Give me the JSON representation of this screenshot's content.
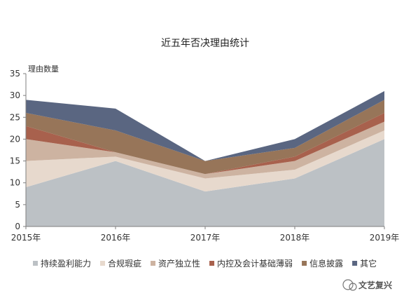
{
  "chart_data": {
    "type": "area",
    "stacked": true,
    "title": "近五年否决理由统计",
    "ylabel": "理由数量",
    "xlabel": "",
    "categories": [
      "2015年",
      "2016年",
      "2017年",
      "2018年",
      "2019年"
    ],
    "ylim": [
      0,
      35
    ],
    "yticks": [
      0,
      5,
      10,
      15,
      20,
      25,
      30,
      35
    ],
    "grid": false,
    "legend_position": "bottom",
    "series": [
      {
        "name": "持续盈利能力",
        "color": "#bcc1c5",
        "values": [
          9,
          15,
          8,
          11,
          20
        ]
      },
      {
        "name": "合规瑕疵",
        "color": "#e7d9cd",
        "values": [
          6,
          1,
          3,
          2,
          2
        ]
      },
      {
        "name": "资产独立性",
        "color": "#cdb3a1",
        "values": [
          5,
          1,
          1,
          2,
          2
        ]
      },
      {
        "name": "内控及会计基础薄弱",
        "color": "#a8614d",
        "values": [
          3,
          0,
          0,
          1,
          2
        ]
      },
      {
        "name": "信息披露",
        "color": "#977559",
        "values": [
          3,
          5,
          3,
          2,
          3
        ]
      },
      {
        "name": "其它",
        "color": "#5a6681",
        "values": [
          3,
          5,
          0,
          2,
          2
        ]
      }
    ]
  },
  "watermark": {
    "text": "文艺复兴"
  }
}
